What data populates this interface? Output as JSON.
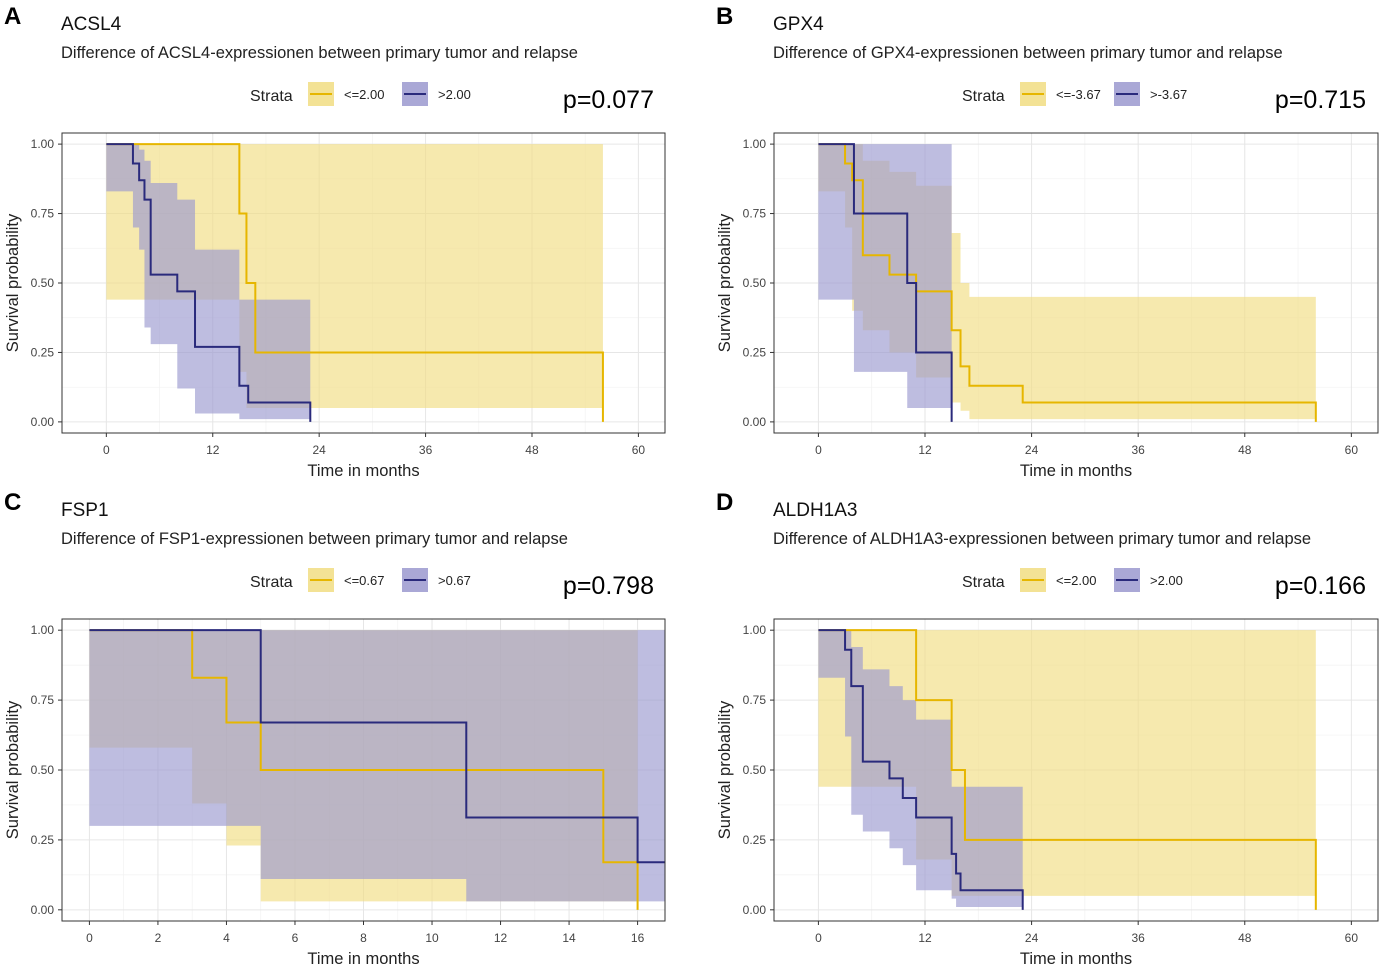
{
  "colors": {
    "low": "#e6b600",
    "high": "#2a2a7c",
    "low_fill": "#f1dd82",
    "high_fill": "#9b99cf"
  },
  "chart_data": [
    {
      "type": "line",
      "subtype": "kaplan-meier",
      "panel": "A",
      "title": "ACSL4",
      "subtitle": "Difference of ACSL4-expressionen between primary tumor and relapse",
      "legend_title": "Strata",
      "legend_position": "top",
      "p_value": "p=0.077",
      "xlabel": "Time in months",
      "ylabel": "Survival probability",
      "xlim": [
        -5,
        63
      ],
      "ylim": [
        -0.04,
        1.04
      ],
      "xticks": [
        0,
        12,
        24,
        36,
        48,
        60
      ],
      "yticks": [
        0,
        0.25,
        0.5,
        0.75,
        1
      ],
      "ytick_labels": [
        "0.00",
        "0.25",
        "0.50",
        "0.75",
        "1.00"
      ],
      "series": [
        {
          "name": "<=2.00",
          "color_key": "low",
          "x": [
            0,
            15,
            15.8,
            16.8,
            56
          ],
          "y": [
            1,
            0.75,
            0.5,
            0.25,
            0
          ],
          "upper": [
            1,
            1,
            1,
            1,
            1
          ],
          "lower": [
            1,
            0.44,
            0.18,
            0.05,
            0.05
          ]
        },
        {
          "name": ">2.00",
          "color_key": "high",
          "x": [
            0,
            3,
            3.7,
            4.3,
            5,
            8,
            10,
            15,
            16,
            23
          ],
          "y": [
            1,
            0.93,
            0.87,
            0.8,
            0.53,
            0.47,
            0.27,
            0.13,
            0.07,
            0
          ],
          "upper": [
            1,
            1,
            0.98,
            0.94,
            0.86,
            0.8,
            0.62,
            0.44,
            0.44,
            0.44
          ],
          "lower": [
            1,
            0.83,
            0.7,
            0.62,
            0.34,
            0.28,
            0.12,
            0.03,
            0.01,
            0.01
          ]
        }
      ]
    },
    {
      "type": "line",
      "subtype": "kaplan-meier",
      "panel": "B",
      "title": "GPX4",
      "subtitle": "Difference of GPX4-expressionen between primary tumor and relapse",
      "legend_title": "Strata",
      "legend_position": "top",
      "p_value": "p=0.715",
      "xlabel": "Time in months",
      "ylabel": "Survival probability",
      "xlim": [
        -5,
        63
      ],
      "ylim": [
        -0.04,
        1.04
      ],
      "xticks": [
        0,
        12,
        24,
        36,
        48,
        60
      ],
      "yticks": [
        0,
        0.25,
        0.5,
        0.75,
        1
      ],
      "ytick_labels": [
        "0.00",
        "0.25",
        "0.50",
        "0.75",
        "1.00"
      ],
      "series": [
        {
          "name": "<=-3.67",
          "color_key": "low",
          "x": [
            0,
            3,
            3.8,
            5,
            8,
            11,
            15,
            16,
            17,
            23,
            56
          ],
          "y": [
            1,
            0.93,
            0.87,
            0.6,
            0.53,
            0.47,
            0.33,
            0.2,
            0.13,
            0.07,
            0
          ],
          "upper": [
            1,
            1,
            1,
            0.94,
            0.9,
            0.85,
            0.68,
            0.5,
            0.45,
            0.45,
            0.45
          ],
          "lower": [
            1,
            0.83,
            0.7,
            0.4,
            0.33,
            0.25,
            0.16,
            0.07,
            0.04,
            0.01,
            0.01
          ]
        },
        {
          "name": ">-3.67",
          "color_key": "high",
          "x": [
            0,
            4,
            10,
            11,
            15
          ],
          "y": [
            1,
            0.75,
            0.5,
            0.25,
            0
          ],
          "upper": [
            1,
            1,
            1,
            1,
            1
          ],
          "lower": [
            1,
            0.44,
            0.18,
            0.05,
            0.05
          ]
        }
      ]
    },
    {
      "type": "line",
      "subtype": "kaplan-meier",
      "panel": "C",
      "title": "FSP1",
      "subtitle": "Difference of FSP1-expressionen between primary tumor and relapse",
      "legend_title": "Strata",
      "legend_position": "top",
      "p_value": "p=0.798",
      "xlabel": "Time in months",
      "ylabel": "Survival probability",
      "xlim": [
        -0.8,
        16.8
      ],
      "ylim": [
        -0.04,
        1.04
      ],
      "xticks": [
        0,
        2,
        4,
        6,
        8,
        10,
        12,
        14,
        16
      ],
      "yticks": [
        0,
        0.25,
        0.5,
        0.75,
        1
      ],
      "ytick_labels": [
        "0.00",
        "0.25",
        "0.50",
        "0.75",
        "1.00"
      ],
      "series": [
        {
          "name": "<=0.67",
          "color_key": "low",
          "x": [
            0,
            3,
            4,
            5,
            15,
            16
          ],
          "y": [
            1,
            0.83,
            0.67,
            0.5,
            0.17,
            0
          ],
          "upper": [
            1,
            1,
            1,
            1,
            1,
            1
          ],
          "lower": [
            1,
            0.58,
            0.38,
            0.23,
            0.03,
            0.03
          ]
        },
        {
          "name": ">0.67",
          "color_key": "high",
          "x": [
            0,
            5,
            11,
            16,
            16.8
          ],
          "y": [
            1,
            0.67,
            0.33,
            0.17,
            0.17
          ],
          "upper": [
            1,
            1,
            1,
            1,
            1
          ],
          "lower": [
            1,
            0.3,
            0.11,
            0.03,
            0.03
          ]
        }
      ]
    },
    {
      "type": "line",
      "subtype": "kaplan-meier",
      "panel": "D",
      "title": "ALDH1A3",
      "subtitle": "Difference of ALDH1A3-expressionen between primary tumor and relapse",
      "legend_title": "Strata",
      "legend_position": "top",
      "p_value": "p=0.166",
      "xlabel": "Time in months",
      "ylabel": "Survival probability",
      "xlim": [
        -5,
        63
      ],
      "ylim": [
        -0.04,
        1.04
      ],
      "xticks": [
        0,
        12,
        24,
        36,
        48,
        60
      ],
      "yticks": [
        0,
        0.25,
        0.5,
        0.75,
        1
      ],
      "ytick_labels": [
        "0.00",
        "0.25",
        "0.50",
        "0.75",
        "1.00"
      ],
      "series": [
        {
          "name": "<=2.00",
          "color_key": "low",
          "x": [
            0,
            11,
            15,
            16.5,
            56
          ],
          "y": [
            1,
            0.75,
            0.5,
            0.25,
            0
          ],
          "upper": [
            1,
            1,
            1,
            1,
            1
          ],
          "lower": [
            1,
            0.44,
            0.18,
            0.05,
            0.05
          ]
        },
        {
          "name": ">2.00",
          "color_key": "high",
          "x": [
            0,
            3,
            3.7,
            5,
            8,
            9.5,
            11,
            15,
            15.5,
            16,
            23
          ],
          "y": [
            1,
            0.93,
            0.8,
            0.53,
            0.47,
            0.4,
            0.33,
            0.2,
            0.13,
            0.07,
            0
          ],
          "upper": [
            1,
            1,
            0.94,
            0.86,
            0.8,
            0.75,
            0.68,
            0.44,
            0.44,
            0.44,
            0.44
          ],
          "lower": [
            1,
            0.83,
            0.62,
            0.34,
            0.28,
            0.22,
            0.16,
            0.07,
            0.04,
            0.01,
            0.01
          ]
        }
      ]
    }
  ]
}
